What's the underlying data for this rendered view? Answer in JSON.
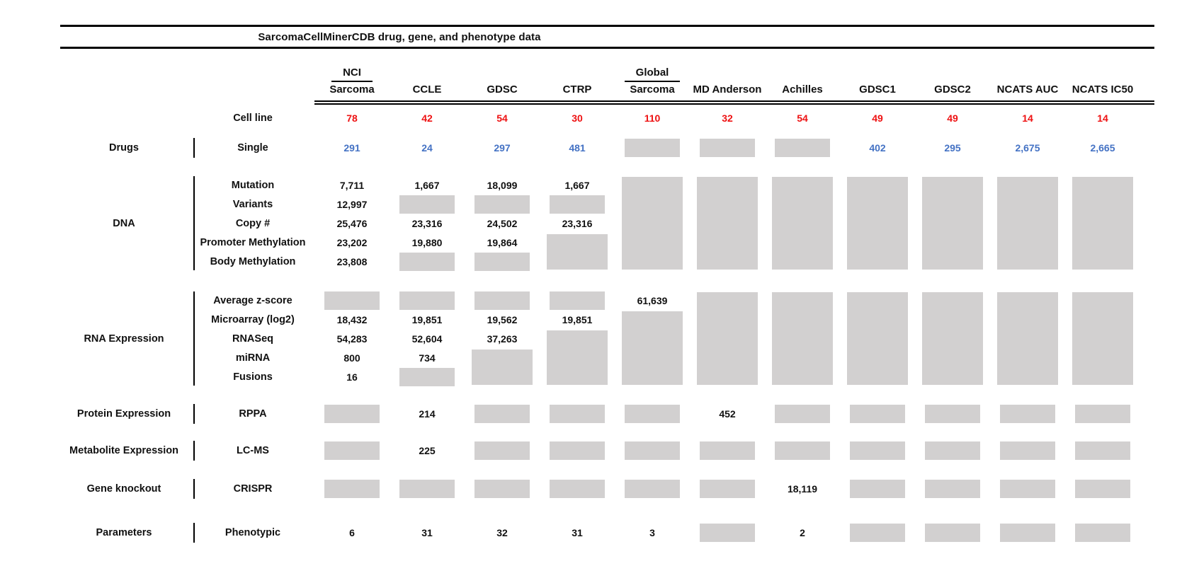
{
  "title": "SarcomaCellMinerCDB drug, gene, and phenotype data",
  "colors": {
    "red": "#ee1112",
    "blue": "#4472c4",
    "gray_box": "#d2d0d0",
    "text": "#111111"
  },
  "chart_data": {
    "type": "table",
    "title": "SarcomaCellMinerCDB drug, gene, and phenotype data",
    "columns": [
      {
        "group": "NCI",
        "name": "Sarcoma"
      },
      {
        "name": "CCLE"
      },
      {
        "name": "GDSC"
      },
      {
        "name": "CTRP"
      },
      {
        "group": "Global",
        "name": "Sarcoma"
      },
      {
        "name": "MD Anderson"
      },
      {
        "name": "Achilles"
      },
      {
        "name": "GDSC1"
      },
      {
        "name": "GDSC2"
      },
      {
        "name": "NCATS AUC"
      },
      {
        "name": "NCATS IC50"
      }
    ],
    "cell_line_row": {
      "label": "Cell line",
      "color": "red",
      "values": [
        "78",
        "42",
        "54",
        "30",
        "110",
        "32",
        "54",
        "49",
        "49",
        "14",
        "14"
      ]
    },
    "sections": [
      {
        "category": "Drugs",
        "rows": [
          {
            "label": "Single",
            "color": "blue",
            "cells": [
              "291",
              "24",
              "297",
              "481",
              "GRAY",
              "GRAY",
              "GRAY",
              "402",
              "295",
              "2,675",
              "2,665"
            ]
          }
        ],
        "gray_spans": []
      },
      {
        "category": "DNA",
        "rows": [
          {
            "label": "Mutation",
            "cells": [
              "7,711",
              "1,667",
              "18,099",
              "1,667",
              null,
              null,
              null,
              null,
              null,
              null,
              null
            ]
          },
          {
            "label": "Variants",
            "cells": [
              "12,997",
              "GRAY",
              "GRAY",
              "GRAY",
              null,
              null,
              null,
              null,
              null,
              null,
              null
            ]
          },
          {
            "label": "Copy #",
            "cells": [
              "25,476",
              "23,316",
              "24,502",
              "23,316",
              null,
              null,
              null,
              null,
              null,
              null,
              null
            ]
          },
          {
            "label": "Promoter Methylation",
            "cells": [
              "23,202",
              "19,880",
              "19,864",
              null,
              null,
              null,
              null,
              null,
              null,
              null,
              null
            ]
          },
          {
            "label": "Body Methylation",
            "cells": [
              "23,808",
              "GRAY",
              "GRAY",
              null,
              null,
              null,
              null,
              null,
              null,
              null,
              null
            ]
          }
        ],
        "gray_spans": [
          {
            "col": 3,
            "row": 3,
            "span": 2
          },
          {
            "col": 4,
            "row": 0,
            "span": 5
          },
          {
            "col": 5,
            "row": 0,
            "span": 5
          },
          {
            "col": 6,
            "row": 0,
            "span": 5
          },
          {
            "col": 7,
            "row": 0,
            "span": 5
          },
          {
            "col": 8,
            "row": 0,
            "span": 5
          },
          {
            "col": 9,
            "row": 0,
            "span": 5
          },
          {
            "col": 10,
            "row": 0,
            "span": 5
          }
        ]
      },
      {
        "category": "RNA Expression",
        "rows": [
          {
            "label": "Average z-score",
            "cells": [
              "GRAY",
              "GRAY",
              "GRAY",
              "GRAY",
              "61,639",
              null,
              null,
              null,
              null,
              null,
              null
            ]
          },
          {
            "label": "Microarray (log2)",
            "cells": [
              "18,432",
              "19,851",
              "19,562",
              "19,851",
              null,
              null,
              null,
              null,
              null,
              null,
              null
            ]
          },
          {
            "label": "RNASeq",
            "cells": [
              "54,283",
              "52,604",
              "37,263",
              null,
              null,
              null,
              null,
              null,
              null,
              null,
              null
            ]
          },
          {
            "label": "miRNA",
            "cells": [
              "800",
              "734",
              null,
              null,
              null,
              null,
              null,
              null,
              null,
              null,
              null
            ]
          },
          {
            "label": "Fusions",
            "cells": [
              "16",
              "GRAY",
              null,
              null,
              null,
              null,
              null,
              null,
              null,
              null,
              null
            ]
          }
        ],
        "gray_spans": [
          {
            "col": 2,
            "row": 3,
            "span": 2
          },
          {
            "col": 3,
            "row": 2,
            "span": 3
          },
          {
            "col": 4,
            "row": 1,
            "span": 4
          },
          {
            "col": 5,
            "row": 0,
            "span": 5
          },
          {
            "col": 6,
            "row": 0,
            "span": 5
          },
          {
            "col": 7,
            "row": 0,
            "span": 5
          },
          {
            "col": 8,
            "row": 0,
            "span": 5
          },
          {
            "col": 9,
            "row": 0,
            "span": 5
          },
          {
            "col": 10,
            "row": 0,
            "span": 5
          }
        ]
      },
      {
        "category": "Protein Expression",
        "rows": [
          {
            "label": "RPPA",
            "cells": [
              "GRAY",
              "214",
              "GRAY",
              "GRAY",
              "GRAY",
              "452",
              "GRAY",
              "GRAY",
              "GRAY",
              "GRAY",
              "GRAY"
            ]
          }
        ],
        "gray_spans": []
      },
      {
        "category": "Metabolite Expression",
        "rows": [
          {
            "label": "LC-MS",
            "cells": [
              "GRAY",
              "225",
              "GRAY",
              "GRAY",
              "GRAY",
              "GRAY",
              "GRAY",
              "GRAY",
              "GRAY",
              "GRAY",
              "GRAY"
            ]
          }
        ],
        "gray_spans": []
      },
      {
        "category": "Gene knockout",
        "rows": [
          {
            "label": "CRISPR",
            "cells": [
              "GRAY",
              "GRAY",
              "GRAY",
              "GRAY",
              "GRAY",
              "GRAY",
              "18,119",
              "GRAY",
              "GRAY",
              "GRAY",
              "GRAY"
            ]
          }
        ],
        "gray_spans": []
      },
      {
        "category": "Parameters",
        "rows": [
          {
            "label": "Phenotypic",
            "cells": [
              "6",
              "31",
              "32",
              "31",
              "3",
              "GRAY",
              "2",
              "GRAY",
              "GRAY",
              "GRAY",
              "GRAY"
            ]
          }
        ],
        "gray_spans": []
      }
    ]
  }
}
